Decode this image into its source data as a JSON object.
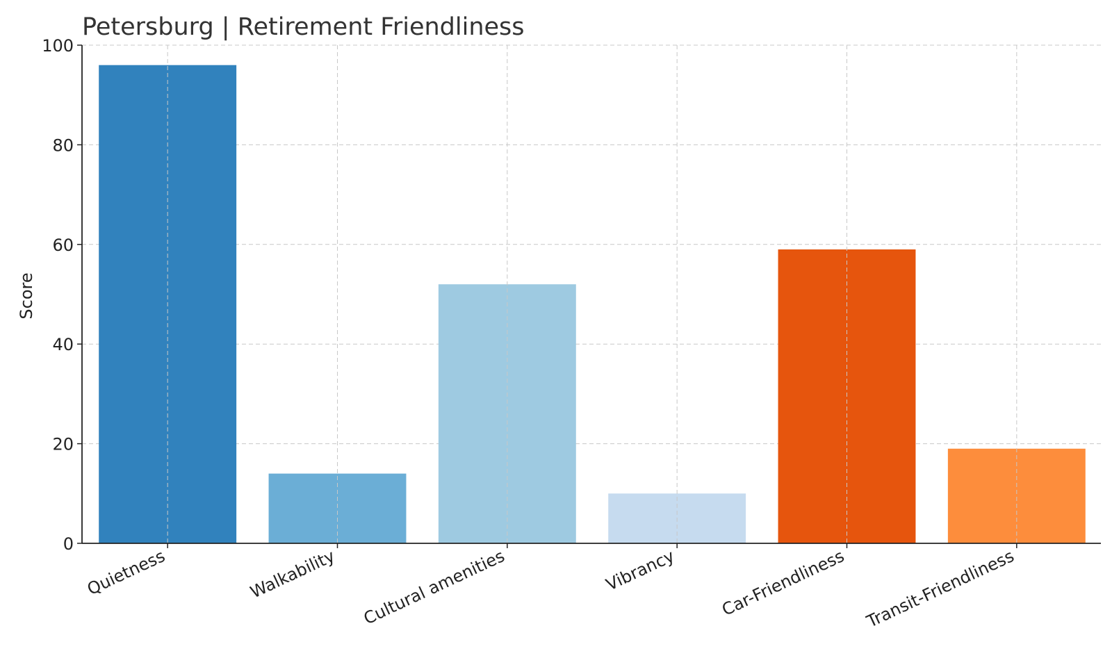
{
  "chart_data": {
    "type": "bar",
    "title": "Petersburg | Retirement Friendliness",
    "xlabel": "",
    "ylabel": "Score",
    "ylim": [
      0,
      100
    ],
    "yticks": [
      0,
      20,
      40,
      60,
      80,
      100
    ],
    "grid": true,
    "categories": [
      "Quietness",
      "Walkability",
      "Cultural amenities",
      "Vibrancy",
      "Car-Friendliness",
      "Transit-Friendliness"
    ],
    "values": [
      96,
      14,
      52,
      10,
      59,
      19
    ],
    "colors": [
      "#3182bd",
      "#6baed6",
      "#9ecae1",
      "#c6dbef",
      "#e6550d",
      "#fd8d3c"
    ]
  }
}
